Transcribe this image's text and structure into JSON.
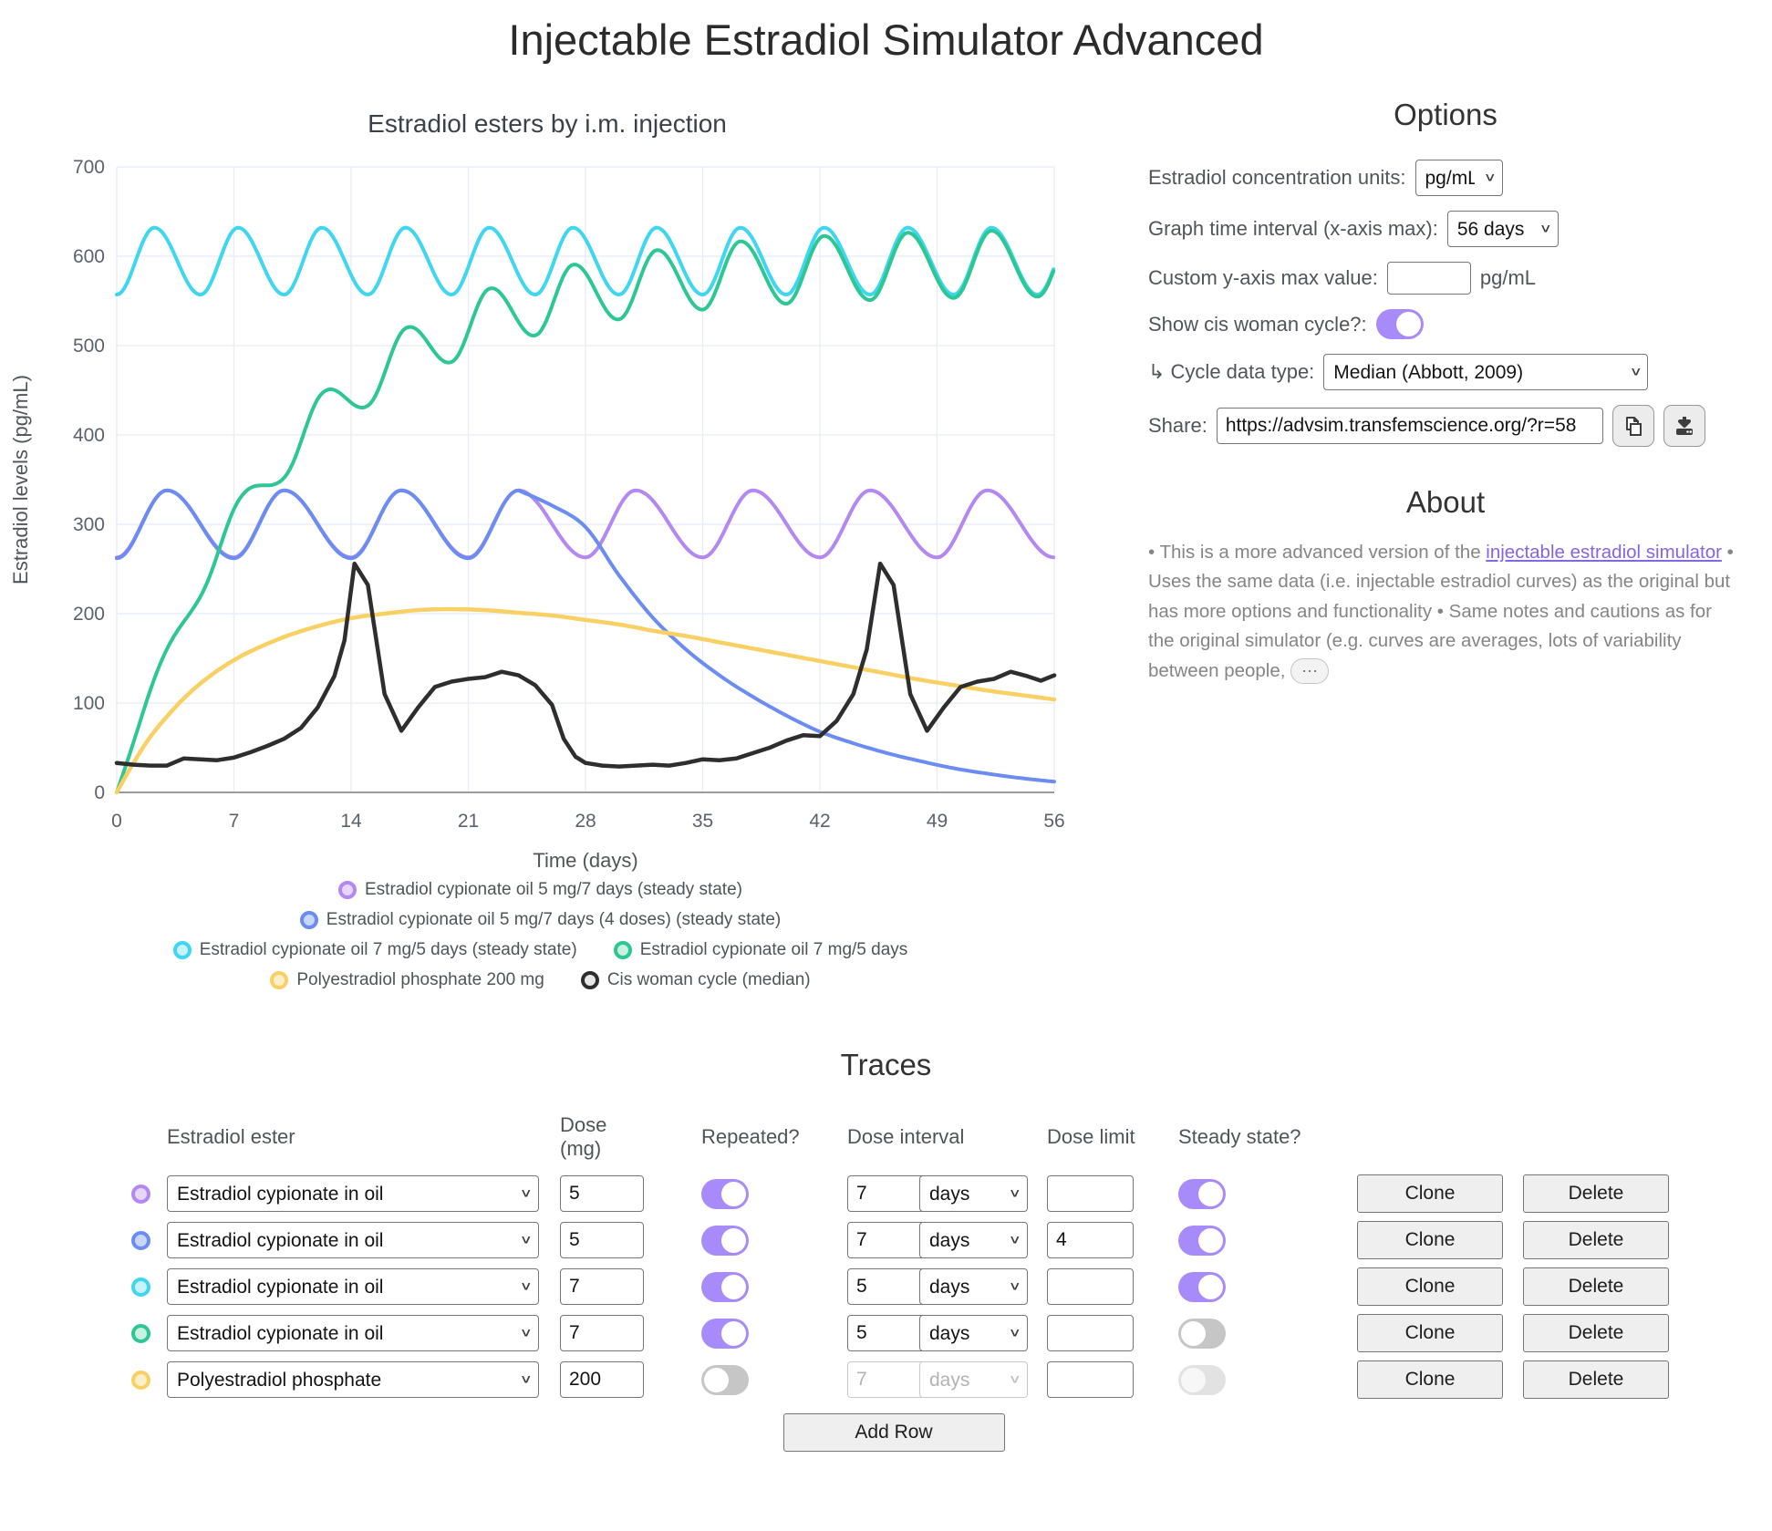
{
  "page_title": "Injectable Estradiol Simulator Advanced",
  "chart": {
    "title": "Estradiol esters by i.m. injection",
    "xlabel": "Time (days)",
    "ylabel": "Estradiol levels (pg/mL)"
  },
  "chart_data": {
    "type": "line",
    "title": "Estradiol esters by i.m. injection",
    "xlabel": "Time (days)",
    "ylabel": "Estradiol levels (pg/mL)",
    "xlim": [
      0,
      56
    ],
    "ylim": [
      0,
      700
    ],
    "x_ticks": [
      0,
      7,
      14,
      21,
      28,
      35,
      42,
      49,
      56
    ],
    "y_ticks": [
      0,
      100,
      200,
      300,
      400,
      500,
      600,
      700
    ],
    "grid": true,
    "legend_position": "bottom",
    "series": [
      {
        "name": "Estradiol cypionate oil 5 mg/7 days (steady state)",
        "color": "#b388f2",
        "fill": "#e6d6fa",
        "width": 4,
        "model": "periodic",
        "period": 7,
        "trough": 263,
        "peak": 338,
        "peak_frac": 0.4286,
        "range": [
          0,
          56
        ]
      },
      {
        "name": "Estradiol cypionate oil 5 mg/7 days (4 doses) (steady state)",
        "color": "#6b8cf2",
        "fill": "#c9d6fb",
        "width": 4,
        "model": "periodic_then_decay",
        "period": 7,
        "trough": 262,
        "peak": 338,
        "peak_frac": 0.4286,
        "switch_day": 24,
        "decay_keypoints": [
          [
            24,
            338
          ],
          [
            26,
            321
          ],
          [
            28,
            297
          ],
          [
            30,
            243
          ],
          [
            32,
            196
          ],
          [
            34,
            160
          ],
          [
            36,
            131
          ],
          [
            38,
            107
          ],
          [
            40,
            86
          ],
          [
            42,
            68
          ],
          [
            44,
            55
          ],
          [
            46,
            44
          ],
          [
            48,
            35
          ],
          [
            50,
            27
          ],
          [
            52,
            21
          ],
          [
            54,
            16
          ],
          [
            56,
            12
          ]
        ]
      },
      {
        "name": "Estradiol cypionate oil 7 mg/5 days (steady state)",
        "color": "#3ed6f0",
        "fill": "#c8f2fb",
        "width": 4,
        "model": "periodic",
        "period": 5,
        "trough": 557,
        "peak": 632,
        "peak_frac": 0.45,
        "range": [
          0,
          56
        ]
      },
      {
        "name": "Estradiol cypionate oil 7 mg/5 days",
        "color": "#2cc793",
        "fill": "#c9f0e1",
        "width": 4,
        "model": "periodic_saturating",
        "period": 5,
        "trough": 557,
        "peak": 632,
        "peak_frac": 0.45,
        "tau": 10,
        "range": [
          0,
          56
        ]
      },
      {
        "name": "Polyestradiol phosphate 200 mg",
        "color": "#f8d064",
        "fill": "#fcefc8",
        "width": 4.5,
        "model": "keypoints",
        "smooth": true,
        "keypoints": [
          [
            0,
            0
          ],
          [
            1,
            33
          ],
          [
            2,
            62
          ],
          [
            3,
            85
          ],
          [
            4,
            105
          ],
          [
            5,
            122
          ],
          [
            6,
            136
          ],
          [
            7,
            148
          ],
          [
            8,
            158
          ],
          [
            10,
            174
          ],
          [
            12,
            186
          ],
          [
            14,
            195
          ],
          [
            16,
            200
          ],
          [
            18,
            204
          ],
          [
            20,
            205
          ],
          [
            22,
            204
          ],
          [
            24,
            201
          ],
          [
            26,
            198
          ],
          [
            28,
            193
          ],
          [
            30,
            188
          ],
          [
            32,
            181
          ],
          [
            34,
            175
          ],
          [
            36,
            168
          ],
          [
            38,
            161
          ],
          [
            40,
            154
          ],
          [
            42,
            147
          ],
          [
            44,
            140
          ],
          [
            46,
            133
          ],
          [
            48,
            126
          ],
          [
            50,
            120
          ],
          [
            52,
            114
          ],
          [
            54,
            109
          ],
          [
            56,
            104
          ]
        ]
      },
      {
        "name": "Cis woman cycle (median)",
        "color": "#2e2e2e",
        "fill": "#e8e8e8",
        "width": 4.5,
        "model": "keypoints",
        "smooth": false,
        "keypoints": [
          [
            0,
            33
          ],
          [
            1,
            31
          ],
          [
            2,
            30
          ],
          [
            3,
            30
          ],
          [
            4,
            38
          ],
          [
            5,
            37
          ],
          [
            6,
            36
          ],
          [
            7,
            39
          ],
          [
            8,
            45
          ],
          [
            9,
            52
          ],
          [
            10,
            60
          ],
          [
            11,
            72
          ],
          [
            12,
            95
          ],
          [
            13,
            130
          ],
          [
            13.6,
            170
          ],
          [
            14.2,
            256
          ],
          [
            15,
            232
          ],
          [
            16,
            110
          ],
          [
            17,
            69
          ],
          [
            18,
            95
          ],
          [
            19,
            118
          ],
          [
            20,
            124
          ],
          [
            21,
            127
          ],
          [
            22,
            129
          ],
          [
            23,
            135
          ],
          [
            24,
            131
          ],
          [
            25,
            120
          ],
          [
            26,
            98
          ],
          [
            26.7,
            60
          ],
          [
            27.4,
            40
          ],
          [
            28,
            33
          ],
          [
            29,
            30
          ],
          [
            30,
            29
          ],
          [
            31,
            30
          ],
          [
            32,
            31
          ],
          [
            33,
            30
          ],
          [
            34,
            33
          ],
          [
            35,
            37
          ],
          [
            36,
            36
          ],
          [
            37,
            38
          ],
          [
            38,
            44
          ],
          [
            39,
            50
          ],
          [
            40,
            58
          ],
          [
            41,
            64
          ],
          [
            42,
            63
          ],
          [
            43,
            80
          ],
          [
            44,
            110
          ],
          [
            44.8,
            160
          ],
          [
            45.6,
            256
          ],
          [
            46.4,
            232
          ],
          [
            47.4,
            110
          ],
          [
            48.4,
            69
          ],
          [
            49.4,
            95
          ],
          [
            50.4,
            118
          ],
          [
            51.4,
            124
          ],
          [
            52.4,
            127
          ],
          [
            53.4,
            135
          ],
          [
            54.4,
            130
          ],
          [
            55.2,
            125
          ],
          [
            56,
            131
          ]
        ]
      }
    ],
    "legend_rows": [
      [
        0
      ],
      [
        1
      ],
      [
        2,
        3
      ],
      [
        4,
        5
      ]
    ]
  },
  "options": {
    "heading": "Options",
    "rows": [
      {
        "label": "Estradiol concentration units:",
        "value": "pg/mL"
      },
      {
        "label": "Graph time interval (x-axis max):",
        "value": "56 days"
      },
      {
        "label": "Custom y-axis max value:",
        "value": "",
        "suffix": "pg/mL"
      },
      {
        "label": "Show cis woman cycle?:",
        "value": true
      },
      {
        "label": "↳ Cycle data type:",
        "value": "Median (Abbott, 2009)"
      },
      {
        "label": "Share:",
        "value": "https://advsim.transfemscience.org/?r=58"
      }
    ],
    "icons": {
      "copy": "copy-icon",
      "download": "download-icon"
    }
  },
  "about": {
    "heading": "About",
    "text_before_link": "• This is a more advanced version of the ",
    "link_text": "injectable estradiol simulator",
    "text_after_link": " • Uses the same data (i.e. injectable estradiol curves) as the original but has more options and functionality • Same notes and cautions as for the original simulator (e.g. curves are averages, lots of variability between people, ",
    "ellipsis": "⋯"
  },
  "traces": {
    "heading": "Traces",
    "headers": [
      "Estradiol ester",
      "Dose (mg)",
      "Repeated?",
      "Dose interval",
      "Dose limit",
      "Steady state?"
    ],
    "clone_label": "Clone",
    "delete_label": "Delete",
    "add_row_label": "Add Row",
    "rows": [
      {
        "marker": "#b388f2",
        "marker_fill": "#e6d6fa",
        "ester": "Estradiol cypionate in oil",
        "dose": "5",
        "repeated": true,
        "interval": "7",
        "interval_unit": "days",
        "dose_limit": "",
        "steady": true,
        "interval_disabled": false,
        "steady_disabled": false
      },
      {
        "marker": "#6b8cf2",
        "marker_fill": "#c9d6fb",
        "ester": "Estradiol cypionate in oil",
        "dose": "5",
        "repeated": true,
        "interval": "7",
        "interval_unit": "days",
        "dose_limit": "4",
        "steady": true,
        "interval_disabled": false,
        "steady_disabled": false
      },
      {
        "marker": "#3ed6f0",
        "marker_fill": "#c8f2fb",
        "ester": "Estradiol cypionate in oil",
        "dose": "7",
        "repeated": true,
        "interval": "5",
        "interval_unit": "days",
        "dose_limit": "",
        "steady": true,
        "interval_disabled": false,
        "steady_disabled": false
      },
      {
        "marker": "#2cc793",
        "marker_fill": "#c9f0e1",
        "ester": "Estradiol cypionate in oil",
        "dose": "7",
        "repeated": true,
        "interval": "5",
        "interval_unit": "days",
        "dose_limit": "",
        "steady": false,
        "interval_disabled": false,
        "steady_disabled": false
      },
      {
        "marker": "#f8d064",
        "marker_fill": "#fcefc8",
        "ester": "Polyestradiol phosphate",
        "dose": "200",
        "repeated": false,
        "interval": "7",
        "interval_unit": "days",
        "dose_limit": "",
        "steady": false,
        "interval_disabled": true,
        "steady_disabled": true
      }
    ]
  },
  "colors": {
    "accent_toggle": "#a78bfa",
    "toggle_off": "#c6c6c6",
    "grid_line": "#eaedf5",
    "axis_line": "#9b9b9b",
    "tick_text": "#5c626b",
    "link": "#8465e6"
  }
}
